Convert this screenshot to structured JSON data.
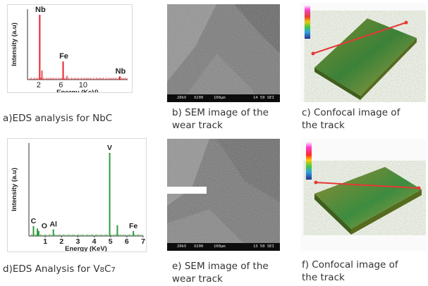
{
  "panels": {
    "a": {
      "caption": "a)EDS analysis for NbC",
      "chart_data": {
        "type": "bar",
        "xlabel": "Energy (KeV)",
        "ylabel": "Intensity (a.u)",
        "xticks": [
          "2",
          "6",
          "10"
        ],
        "x": [
          2.2,
          6.4,
          16.6
        ],
        "values": [
          100,
          28,
          5
        ],
        "peak_labels": [
          "Nb",
          "Fe",
          "Nb"
        ],
        "color": "#e8202a"
      }
    },
    "b": {
      "caption_line1": "b) SEM image of the",
      "caption_line2": "wear  track",
      "info": {
        "kv": "20kV",
        "mag": "X200",
        "scale": "100µm",
        "time": "14 50 SEI"
      }
    },
    "c": {
      "caption_line1": "c) Confocal image of",
      "caption_line2": "the track"
    },
    "d": {
      "caption": "d)EDS Analysis for V",
      "caption_sub1": "8",
      "caption_mid": "C",
      "caption_sub2": "7",
      "chart_data": {
        "type": "bar",
        "xlabel": "Energy (KeV)",
        "ylabel": "Intensity (a.u)",
        "xticks": [
          "1",
          "2",
          "3",
          "4",
          "5",
          "6",
          "7"
        ],
        "x": [
          0.28,
          0.52,
          0.6,
          1.5,
          4.95,
          5.42,
          6.4
        ],
        "values": [
          12,
          9,
          6,
          8,
          100,
          13,
          6
        ],
        "peak_labels": [
          "C",
          "O",
          "Al",
          "V",
          "Fe"
        ],
        "xlim": [
          0,
          7
        ],
        "color": "#2e9a3c"
      }
    },
    "e": {
      "caption_line1": "e) SEM image of the",
      "caption_line2": "wear  track",
      "info": {
        "kv": "20kV",
        "mag": "X200",
        "scale": "100µm",
        "time": "13 50 SEI"
      }
    },
    "f": {
      "caption_line1": "f) Confocal image of",
      "caption_line2": "the track"
    }
  }
}
